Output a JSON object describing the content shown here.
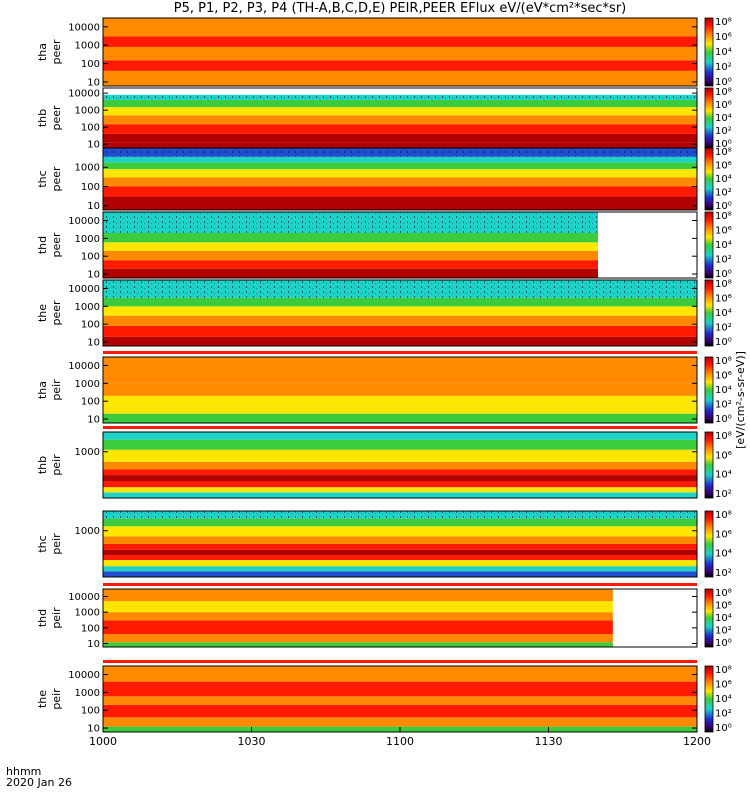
{
  "title": "P5, P1, P2, P3, P4 (TH-A,B,C,D,E) PEIR,PEER EFlux eV/(eV*cm²*sec*sr)",
  "x_axis": {
    "label_line1": "hhmm",
    "label_line2": "2020 Jan 26",
    "ticks": [
      "1000",
      "1030",
      "1100",
      "1130",
      "1200"
    ]
  },
  "colorbar_label": "[eV/(cm²-s-sr-eV)]",
  "colors": {
    "dark_red": "#b00000",
    "red": "#ff1a00",
    "orange": "#ff8a00",
    "yellow": "#ffe600",
    "green": "#3ccb3c",
    "cyan": "#1ed2c8",
    "blue": "#1f4fd0",
    "navy": "#000078",
    "black": "#000000"
  },
  "chart_data": {
    "type": "heatmap",
    "x_range_minutes": [
      0,
      120
    ],
    "panels": [
      {
        "name": "tha_peer",
        "label1": "tha",
        "label2": "peer",
        "y_ticks": [
          "10",
          "100",
          "1000",
          "10000"
        ],
        "y_range": [
          6,
          30000
        ],
        "bands": [
          [
            6,
            12,
            "orange"
          ],
          [
            12,
            40,
            "orange"
          ],
          [
            40,
            150,
            "red"
          ],
          [
            150,
            800,
            "orange"
          ],
          [
            800,
            3000,
            "red"
          ],
          [
            3000,
            30000,
            "orange"
          ]
        ],
        "cbar_ticks": [
          "10⁰",
          "10²",
          "10⁴",
          "10⁶",
          "10⁸"
        ]
      },
      {
        "name": "thb_peer",
        "label1": "thb",
        "label2": "peer",
        "y_ticks": [
          "10",
          "100",
          "1000",
          "10000"
        ],
        "y_range": [
          6,
          20000
        ],
        "bands": [
          [
            6,
            12,
            "dark_red"
          ],
          [
            12,
            40,
            "dark_red"
          ],
          [
            40,
            150,
            "red"
          ],
          [
            150,
            500,
            "orange"
          ],
          [
            500,
            1500,
            "yellow"
          ],
          [
            1500,
            4000,
            "green"
          ],
          [
            4000,
            8000,
            "cyan"
          ]
        ],
        "cbar_ticks": [
          "10⁰",
          "10²",
          "10⁴",
          "10⁶",
          "10⁸"
        ]
      },
      {
        "name": "thc_peer",
        "label1": "thc",
        "label2": "peer",
        "y_ticks": [
          "10",
          "100",
          "1000"
        ],
        "y_range": [
          6,
          10000
        ],
        "bands": [
          [
            6,
            30,
            "dark_red"
          ],
          [
            30,
            100,
            "red"
          ],
          [
            100,
            300,
            "orange"
          ],
          [
            300,
            800,
            "yellow"
          ],
          [
            800,
            1800,
            "green"
          ],
          [
            1800,
            3500,
            "cyan"
          ],
          [
            3500,
            10000,
            "blue"
          ]
        ],
        "cbar_ticks": [
          "10⁰",
          "10²",
          "10⁴",
          "10⁶",
          "10⁸"
        ]
      },
      {
        "name": "thd_peer",
        "label1": "thd",
        "label2": "peer",
        "y_ticks": [
          "10",
          "100",
          "1000",
          "10000"
        ],
        "y_range": [
          6,
          30000
        ],
        "end_minute": 100,
        "bands": [
          [
            6,
            20,
            "dark_red"
          ],
          [
            20,
            60,
            "red"
          ],
          [
            60,
            200,
            "orange"
          ],
          [
            200,
            600,
            "yellow"
          ],
          [
            600,
            2000,
            "green"
          ],
          [
            2000,
            30000,
            "cyan"
          ]
        ],
        "cbar_ticks": [
          "10⁰",
          "10²",
          "10⁴",
          "10⁶",
          "10⁸"
        ]
      },
      {
        "name": "the_peer",
        "label1": "the",
        "label2": "peer",
        "y_ticks": [
          "10",
          "100",
          "1000",
          "10000"
        ],
        "y_range": [
          6,
          30000
        ],
        "bands": [
          [
            6,
            20,
            "dark_red"
          ],
          [
            20,
            80,
            "red"
          ],
          [
            80,
            300,
            "orange"
          ],
          [
            300,
            1000,
            "yellow"
          ],
          [
            1000,
            3000,
            "green"
          ],
          [
            3000,
            30000,
            "cyan"
          ]
        ],
        "cbar_ticks": [
          "10⁰",
          "10²",
          "10⁴",
          "10⁶",
          "10⁸"
        ]
      },
      {
        "name": "tha_peir",
        "label1": "tha",
        "label2": "peir",
        "y_ticks": [
          "10",
          "100",
          "1000",
          "10000"
        ],
        "y_range": [
          6,
          30000
        ],
        "bands": [
          [
            6,
            20,
            "green"
          ],
          [
            20,
            60,
            "yellow"
          ],
          [
            60,
            200,
            "yellow"
          ],
          [
            200,
            1000,
            "orange"
          ],
          [
            1000,
            30000,
            "orange"
          ]
        ],
        "cbar_ticks": [
          "10⁰",
          "10²",
          "10⁴",
          "10⁶",
          "10⁸"
        ]
      },
      {
        "name": "thb_peir",
        "label1": "thb",
        "label2": "peir",
        "y_ticks": [
          "1000"
        ],
        "y_range": [
          15,
          6000
        ],
        "bands": [
          [
            15,
            25,
            "cyan"
          ],
          [
            25,
            40,
            "yellow"
          ],
          [
            40,
            70,
            "red"
          ],
          [
            70,
            120,
            "dark_red"
          ],
          [
            120,
            200,
            "red"
          ],
          [
            200,
            400,
            "orange"
          ],
          [
            400,
            1200,
            "yellow"
          ],
          [
            1200,
            3000,
            "green"
          ],
          [
            3000,
            6000,
            "cyan"
          ]
        ],
        "cbar_ticks": [
          "10²",
          "10⁴",
          "10⁶",
          "10⁸"
        ]
      },
      {
        "name": "thc_peir",
        "label1": "thc",
        "label2": "peir",
        "y_ticks": [
          "1000"
        ],
        "y_range": [
          15,
          6000
        ],
        "bands": [
          [
            15,
            25,
            "blue"
          ],
          [
            25,
            40,
            "cyan"
          ],
          [
            40,
            70,
            "yellow"
          ],
          [
            70,
            110,
            "red"
          ],
          [
            110,
            180,
            "dark_red"
          ],
          [
            180,
            300,
            "red"
          ],
          [
            300,
            600,
            "orange"
          ],
          [
            600,
            1500,
            "yellow"
          ],
          [
            1500,
            3000,
            "green"
          ],
          [
            3000,
            6000,
            "cyan"
          ]
        ],
        "cbar_ticks": [
          "10²",
          "10⁴",
          "10⁶",
          "10⁸"
        ]
      },
      {
        "name": "thd_peir",
        "label1": "thd",
        "label2": "peir",
        "y_ticks": [
          "10",
          "100",
          "1000",
          "10000"
        ],
        "y_range": [
          6,
          30000
        ],
        "end_minute": 103,
        "bands": [
          [
            6,
            12,
            "green"
          ],
          [
            12,
            40,
            "orange"
          ],
          [
            40,
            300,
            "red"
          ],
          [
            300,
            1000,
            "orange"
          ],
          [
            1000,
            5000,
            "yellow"
          ],
          [
            5000,
            30000,
            "orange"
          ]
        ],
        "cbar_ticks": [
          "10⁰",
          "10²",
          "10⁴",
          "10⁶",
          "10⁸"
        ]
      },
      {
        "name": "the_peir",
        "label1": "the",
        "label2": "peir",
        "y_ticks": [
          "10",
          "100",
          "1000",
          "10000"
        ],
        "y_range": [
          6,
          30000
        ],
        "bands": [
          [
            6,
            12,
            "green"
          ],
          [
            12,
            40,
            "orange"
          ],
          [
            40,
            200,
            "red"
          ],
          [
            200,
            600,
            "orange"
          ],
          [
            600,
            4000,
            "red"
          ],
          [
            4000,
            30000,
            "orange"
          ]
        ],
        "cbar_ticks": [
          "10⁰",
          "10²",
          "10⁴",
          "10⁶",
          "10⁸"
        ]
      }
    ]
  }
}
